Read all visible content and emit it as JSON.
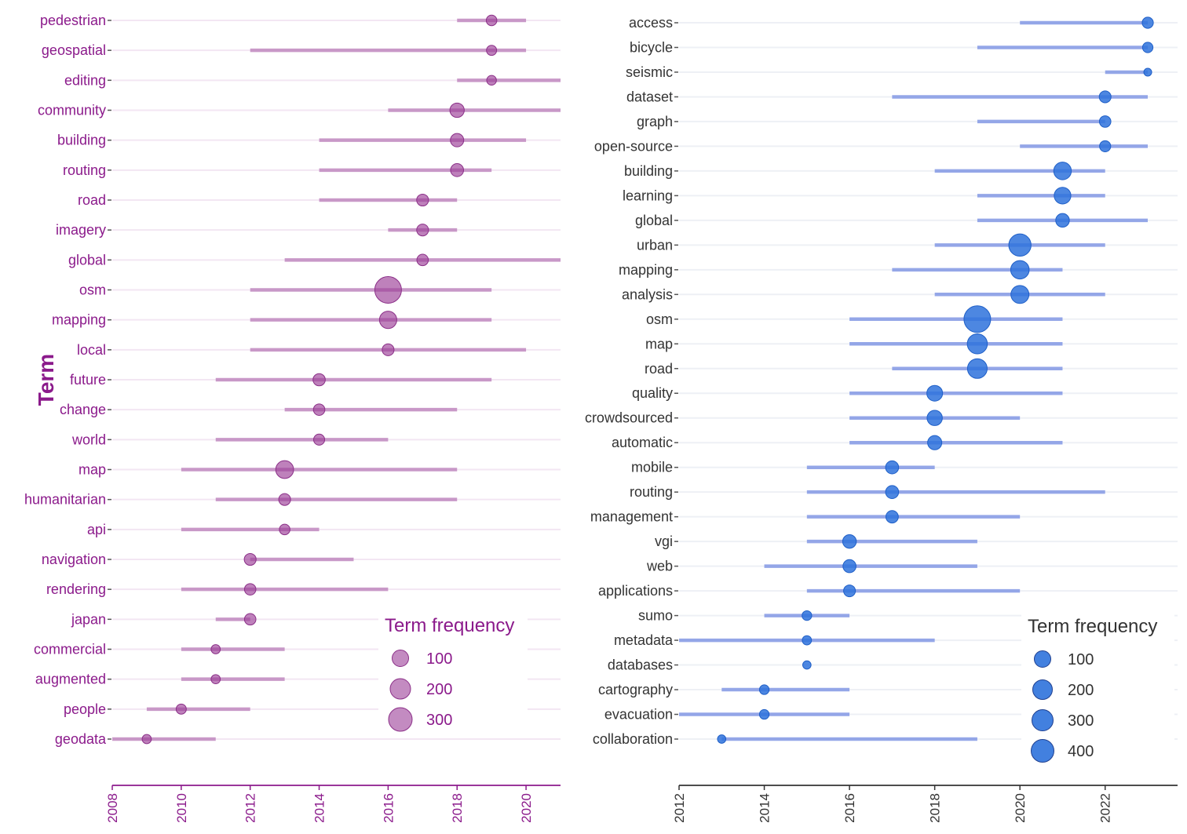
{
  "chart_data": [
    {
      "type": "scatter",
      "title": "",
      "ylabel": "Term",
      "xlabel": "",
      "xlim": [
        2008,
        2021
      ],
      "xticks": [
        2008,
        2010,
        2012,
        2014,
        2016,
        2018,
        2020
      ],
      "grid": true,
      "color": "#9b3d97",
      "range_color": "#c48fc3",
      "text_color": "#8b1a8b",
      "legend": {
        "title": "Term frequency",
        "placement": "bottom-right",
        "sizes": [
          "100",
          "200",
          "300"
        ]
      },
      "terms": [
        {
          "term": "pedestrian",
          "start": 2018,
          "end": 2020,
          "peak": 2019,
          "freq": 60
        },
        {
          "term": "geospatial",
          "start": 2012,
          "end": 2020,
          "peak": 2019,
          "freq": 55
        },
        {
          "term": "editing",
          "start": 2018,
          "end": 2021,
          "peak": 2019,
          "freq": 50
        },
        {
          "term": "community",
          "start": 2016,
          "end": 2021,
          "peak": 2018,
          "freq": 110
        },
        {
          "term": "building",
          "start": 2014,
          "end": 2020,
          "peak": 2018,
          "freq": 95
        },
        {
          "term": "routing",
          "start": 2014,
          "end": 2019,
          "peak": 2018,
          "freq": 90
        },
        {
          "term": "road",
          "start": 2014,
          "end": 2018,
          "peak": 2017,
          "freq": 75
        },
        {
          "term": "imagery",
          "start": 2016,
          "end": 2018,
          "peak": 2017,
          "freq": 75
        },
        {
          "term": "global",
          "start": 2013,
          "end": 2021,
          "peak": 2017,
          "freq": 70
        },
        {
          "term": "osm",
          "start": 2012,
          "end": 2019,
          "peak": 2016,
          "freq": 380
        },
        {
          "term": "mapping",
          "start": 2012,
          "end": 2019,
          "peak": 2016,
          "freq": 160
        },
        {
          "term": "local",
          "start": 2012,
          "end": 2020,
          "peak": 2016,
          "freq": 75
        },
        {
          "term": "future",
          "start": 2011,
          "end": 2019,
          "peak": 2014,
          "freq": 80
        },
        {
          "term": "change",
          "start": 2013,
          "end": 2018,
          "peak": 2014,
          "freq": 70
        },
        {
          "term": "world",
          "start": 2011,
          "end": 2016,
          "peak": 2014,
          "freq": 65
        },
        {
          "term": "map",
          "start": 2010,
          "end": 2018,
          "peak": 2013,
          "freq": 170
        },
        {
          "term": "humanitarian",
          "start": 2011,
          "end": 2018,
          "peak": 2013,
          "freq": 75
        },
        {
          "term": "api",
          "start": 2010,
          "end": 2014,
          "peak": 2013,
          "freq": 60
        },
        {
          "term": "navigation",
          "start": 2012,
          "end": 2015,
          "peak": 2012,
          "freq": 75
        },
        {
          "term": "rendering",
          "start": 2010,
          "end": 2016,
          "peak": 2012,
          "freq": 70
        },
        {
          "term": "japan",
          "start": 2011,
          "end": 2012,
          "peak": 2012,
          "freq": 70
        },
        {
          "term": "commercial",
          "start": 2010,
          "end": 2013,
          "peak": 2011,
          "freq": 45
        },
        {
          "term": "augmented",
          "start": 2010,
          "end": 2013,
          "peak": 2011,
          "freq": 45
        },
        {
          "term": "people",
          "start": 2009,
          "end": 2012,
          "peak": 2010,
          "freq": 55
        },
        {
          "term": "geodata",
          "start": 2008,
          "end": 2011,
          "peak": 2009,
          "freq": 45
        }
      ]
    },
    {
      "type": "scatter",
      "title": "",
      "ylabel": "",
      "xlabel": "",
      "xlim": [
        2012,
        2023.7
      ],
      "xticks": [
        2012,
        2014,
        2016,
        2018,
        2020,
        2022
      ],
      "grid": true,
      "color": "#2e72dc",
      "range_color": "#8a9ee6",
      "text_color": "#333333",
      "legend": {
        "title": "Term frequency",
        "placement": "bottom-right",
        "sizes": [
          "100",
          "200",
          "300",
          "400"
        ]
      },
      "terms": [
        {
          "term": "access",
          "start": 2020,
          "end": 2023,
          "peak": 2023,
          "freq": 80
        },
        {
          "term": "bicycle",
          "start": 2019,
          "end": 2023,
          "peak": 2023,
          "freq": 70
        },
        {
          "term": "seismic",
          "start": 2022,
          "end": 2023,
          "peak": 2023,
          "freq": 40
        },
        {
          "term": "dataset",
          "start": 2017,
          "end": 2023,
          "peak": 2022,
          "freq": 90
        },
        {
          "term": "graph",
          "start": 2019,
          "end": 2022,
          "peak": 2022,
          "freq": 85
        },
        {
          "term": "open-source",
          "start": 2020,
          "end": 2023,
          "peak": 2022,
          "freq": 80
        },
        {
          "term": "building",
          "start": 2018,
          "end": 2022,
          "peak": 2021,
          "freq": 200
        },
        {
          "term": "learning",
          "start": 2019,
          "end": 2022,
          "peak": 2021,
          "freq": 180
        },
        {
          "term": "global",
          "start": 2019,
          "end": 2023,
          "peak": 2021,
          "freq": 120
        },
        {
          "term": "urban",
          "start": 2018,
          "end": 2022,
          "peak": 2020,
          "freq": 320
        },
        {
          "term": "mapping",
          "start": 2017,
          "end": 2021,
          "peak": 2020,
          "freq": 220
        },
        {
          "term": "analysis",
          "start": 2018,
          "end": 2022,
          "peak": 2020,
          "freq": 210
        },
        {
          "term": "osm",
          "start": 2016,
          "end": 2021,
          "peak": 2019,
          "freq": 460
        },
        {
          "term": "map",
          "start": 2016,
          "end": 2021,
          "peak": 2019,
          "freq": 260
        },
        {
          "term": "road",
          "start": 2017,
          "end": 2021,
          "peak": 2019,
          "freq": 250
        },
        {
          "term": "quality",
          "start": 2016,
          "end": 2021,
          "peak": 2018,
          "freq": 160
        },
        {
          "term": "crowdsourced",
          "start": 2016,
          "end": 2020,
          "peak": 2018,
          "freq": 150
        },
        {
          "term": "automatic",
          "start": 2016,
          "end": 2021,
          "peak": 2018,
          "freq": 130
        },
        {
          "term": "mobile",
          "start": 2015,
          "end": 2018,
          "peak": 2017,
          "freq": 110
        },
        {
          "term": "routing",
          "start": 2015,
          "end": 2022,
          "peak": 2017,
          "freq": 110
        },
        {
          "term": "management",
          "start": 2015,
          "end": 2020,
          "peak": 2017,
          "freq": 100
        },
        {
          "term": "vgi",
          "start": 2015,
          "end": 2019,
          "peak": 2016,
          "freq": 120
        },
        {
          "term": "web",
          "start": 2014,
          "end": 2019,
          "peak": 2016,
          "freq": 110
        },
        {
          "term": "applications",
          "start": 2015,
          "end": 2020,
          "peak": 2016,
          "freq": 90
        },
        {
          "term": "sumo",
          "start": 2014,
          "end": 2016,
          "peak": 2015,
          "freq": 60
        },
        {
          "term": "metadata",
          "start": 2012,
          "end": 2018,
          "peak": 2015,
          "freq": 55
        },
        {
          "term": "databases",
          "start": 2015,
          "end": 2015,
          "peak": 2015,
          "freq": 45
        },
        {
          "term": "cartography",
          "start": 2013,
          "end": 2016,
          "peak": 2014,
          "freq": 60
        },
        {
          "term": "evacuation",
          "start": 2012,
          "end": 2016,
          "peak": 2014,
          "freq": 60
        },
        {
          "term": "collaboration",
          "start": 2013,
          "end": 2019,
          "peak": 2013,
          "freq": 45
        }
      ]
    }
  ]
}
